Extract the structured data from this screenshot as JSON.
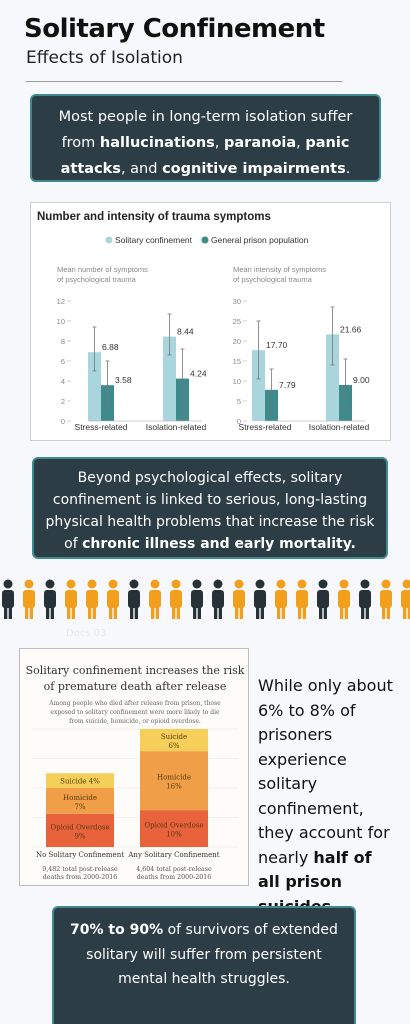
{
  "header": {
    "title": "Solitary Confinement",
    "subtitle": "Effects of Isolation"
  },
  "callout1": {
    "text_1": "Most people in long-term isolation suffer from ",
    "bold_1": "hallucinations",
    "text_2": ", ",
    "bold_2": "paranoia",
    "text_3": ", ",
    "bold_3": "panic attacks",
    "text_4": ", and ",
    "bold_4": "cognitive impairments",
    "text_5": "."
  },
  "callout2": {
    "text_1": "Beyond psychological effects, solitary confinement is linked to serious, long-lasting physical health problems that increase the risk of ",
    "bold_1": "chronic illness and early mortality."
  },
  "side_note": {
    "text_1": "While only about 6% to 8% of prisoners experience solitary confinement, they account for nearly ",
    "bold_1": "half of all prison suicides."
  },
  "callout3": {
    "bold_1": "70% to 90%",
    "text_1": " of survivors of extended solitary will suffer from persistent mental health struggles."
  },
  "faint_label": "Docs 03",
  "colors": {
    "dark_box": "#2c3d45",
    "box_border": "#3f8a8c",
    "solitary": "#a9d6dc",
    "general": "#3f8a8c",
    "figure_dark": "#263238",
    "figure_orange": "#f29f1d",
    "suicide": "#f5cf5a",
    "homicide": "#f09e47",
    "overdose": "#e8623c"
  },
  "people_row": {
    "pattern": [
      "dark",
      "orange",
      "dark",
      "orange",
      "orange",
      "orange",
      "dark",
      "orange",
      "orange",
      "dark",
      "dark",
      "orange",
      "dark",
      "orange",
      "orange",
      "dark",
      "orange",
      "dark",
      "orange",
      "orange"
    ]
  },
  "chart_data": [
    {
      "type": "bar",
      "title": "Number and intensity of trauma symptoms",
      "legend": [
        "Solitary confinement",
        "General prison population"
      ],
      "legend_position": "top",
      "panels": [
        {
          "ylabel_line1": "Mean number of symptoms",
          "ylabel_line2": "of psychological trauma",
          "ylim": [
            0,
            12
          ],
          "ticks": [
            "0",
            "2",
            "4",
            "6",
            "8",
            "10",
            "12"
          ],
          "categories": [
            "Stress-related",
            "Isolation-related"
          ],
          "series": [
            {
              "name": "Solitary confinement",
              "values": [
                6.88,
                8.44
              ],
              "labels": [
                "6.88",
                "8.44"
              ],
              "err_low": [
                5.0,
                6.6
              ],
              "err_high": [
                9.4,
                10.7
              ]
            },
            {
              "name": "General prison population",
              "values": [
                3.58,
                4.24
              ],
              "labels": [
                "3.58",
                "4.24"
              ],
              "err_low": [
                1.4,
                0.0
              ],
              "err_high": [
                6.0,
                7.2
              ]
            }
          ]
        },
        {
          "ylabel_line1": "Mean intensity of symptoms",
          "ylabel_line2": "of psychological trauma",
          "ylim": [
            0,
            30
          ],
          "ticks": [
            "0",
            "5",
            "10",
            "15",
            "20",
            "25",
            "30"
          ],
          "categories": [
            "Stress-related",
            "Isolation-related"
          ],
          "series": [
            {
              "name": "Solitary confinement",
              "values": [
                17.7,
                21.66
              ],
              "labels": [
                "17.70",
                "21.66"
              ],
              "err_low": [
                10.5,
                14.0
              ],
              "err_high": [
                25.0,
                28.5
              ]
            },
            {
              "name": "General prison population",
              "values": [
                7.79,
                9.0
              ],
              "labels": [
                "7.79",
                "9.00"
              ],
              "err_low": [
                1.5,
                2.5
              ],
              "err_high": [
                13.0,
                15.5
              ]
            }
          ]
        }
      ]
    },
    {
      "type": "bar",
      "stacked": true,
      "title_line1": "Solitary confinement increases the risk",
      "title_line2": "of premature death after release",
      "subtitle_line1": "Among people who died after release from prison, those",
      "subtitle_line2": "exposed to solitary confinement were more likely to die",
      "subtitle_line3": "from suicide, homicide, or opioid overdose.",
      "categories": [
        "No Solitary Confinement",
        "Any Solitary Confinement"
      ],
      "category_notes": [
        {
          "line1": "9,482 total post-release",
          "line2": "deaths from 2000-2016"
        },
        {
          "line1": "4,604 total post-release",
          "line2": "deaths from 2000-2016"
        }
      ],
      "ylim": [
        0,
        32
      ],
      "series": [
        {
          "name": "Opioid Overdose",
          "values": [
            9,
            10
          ],
          "labels": [
            "9%",
            "10%"
          ]
        },
        {
          "name": "Homicide",
          "values": [
            7,
            16
          ],
          "labels": [
            "7%",
            "16%"
          ]
        },
        {
          "name": "Suicide",
          "values": [
            4,
            6
          ],
          "labels": [
            "4%",
            "6%"
          ]
        }
      ]
    }
  ]
}
